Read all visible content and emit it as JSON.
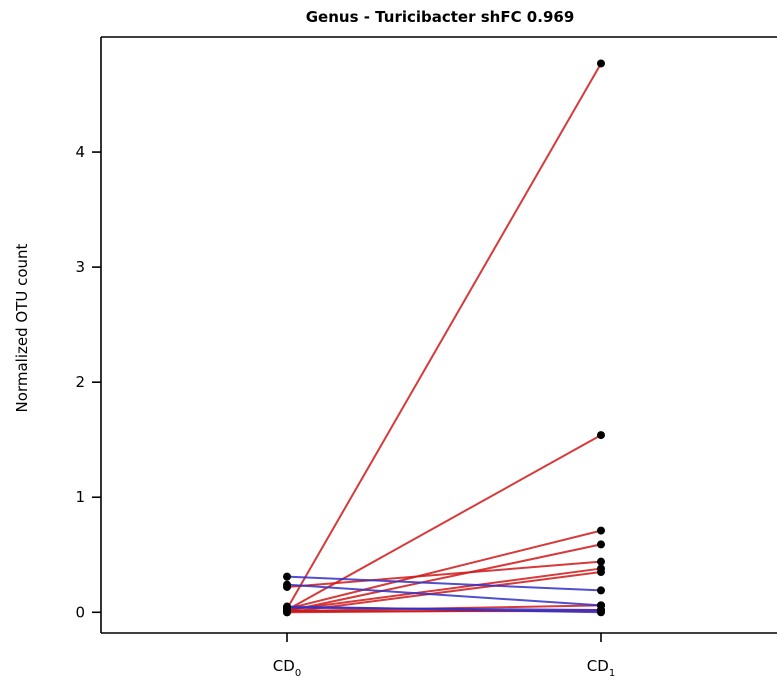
{
  "chart_data": {
    "type": "line",
    "title": "Genus - Turicibacter shFC 0.969",
    "xlabel": "",
    "ylabel": "Normalized OTU count",
    "categories": [
      {
        "main": "CD",
        "sub": "0"
      },
      {
        "main": "CD",
        "sub": "1"
      }
    ],
    "ylim": [
      -0.18,
      5.0
    ],
    "yticks": [
      "0",
      "1",
      "2",
      "3",
      "4"
    ],
    "grid": false,
    "legend": "none",
    "colors": {
      "increase": "#d01818",
      "decrease": "#3030c8",
      "point": "#000000",
      "axis": "#000000"
    },
    "series": [
      {
        "values": [
          0.03,
          4.77
        ],
        "direction": "increase"
      },
      {
        "values": [
          0.02,
          1.54
        ],
        "direction": "increase"
      },
      {
        "values": [
          0.03,
          0.71
        ],
        "direction": "increase"
      },
      {
        "values": [
          0.01,
          0.59
        ],
        "direction": "increase"
      },
      {
        "values": [
          0.22,
          0.44
        ],
        "direction": "increase"
      },
      {
        "values": [
          0.02,
          0.38
        ],
        "direction": "increase"
      },
      {
        "values": [
          0.0,
          0.35
        ],
        "direction": "increase"
      },
      {
        "values": [
          0.01,
          0.06
        ],
        "direction": "increase"
      },
      {
        "values": [
          0.0,
          0.02
        ],
        "direction": "increase"
      },
      {
        "values": [
          0.01,
          0.01
        ],
        "direction": "increase"
      },
      {
        "values": [
          0.31,
          0.19
        ],
        "direction": "decrease"
      },
      {
        "values": [
          0.24,
          0.06
        ],
        "direction": "decrease"
      },
      {
        "values": [
          0.04,
          0.02
        ],
        "direction": "decrease"
      },
      {
        "values": [
          0.05,
          0.0
        ],
        "direction": "decrease"
      }
    ]
  }
}
